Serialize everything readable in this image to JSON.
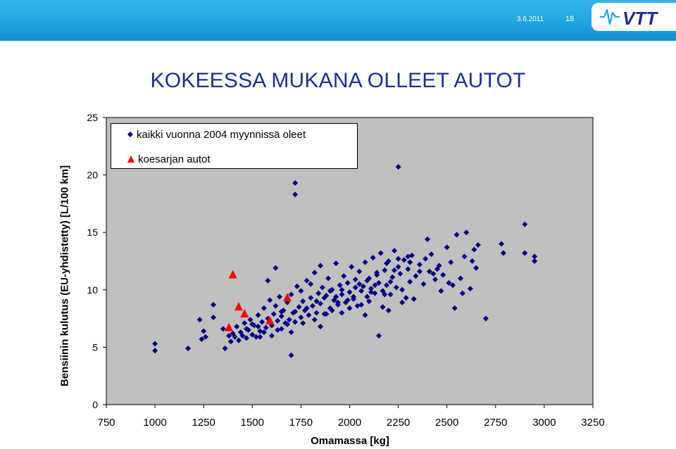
{
  "header": {
    "date": "3.6.2011",
    "page_number": "18",
    "logo_text": "VTT",
    "brand_color": "#1fa5e2"
  },
  "slide": {
    "title": "KOKEESSA MUKANA OLLEET AUTOT"
  },
  "chart_data": {
    "type": "scatter",
    "xlabel": "Omamassa [kg]",
    "ylabel": "Bensiinin kulutus (EU-yhdistetty) [L/100 km]",
    "xlim": [
      750,
      3250
    ],
    "ylim": [
      0,
      25
    ],
    "xticks": [
      750,
      1000,
      1250,
      1500,
      1750,
      2000,
      2250,
      2500,
      2750,
      3000,
      3250
    ],
    "yticks": [
      0,
      5,
      10,
      15,
      20,
      25
    ],
    "grid": false,
    "plot_background": "#c0c0c0",
    "legend_position": "top-left",
    "series": [
      {
        "name": "kaikki vuonna 2004 myynnissä oleet",
        "marker": "diamond",
        "color": "#000080",
        "points": [
          [
            1000,
            5.3
          ],
          [
            1000,
            4.7
          ],
          [
            1170,
            4.9
          ],
          [
            1230,
            7.4
          ],
          [
            1240,
            5.7
          ],
          [
            1250,
            6.4
          ],
          [
            1260,
            5.9
          ],
          [
            1300,
            8.7
          ],
          [
            1300,
            7.6
          ],
          [
            1350,
            6.6
          ],
          [
            1360,
            4.9
          ],
          [
            1380,
            6.0
          ],
          [
            1390,
            5.5
          ],
          [
            1400,
            6.2
          ],
          [
            1410,
            5.9
          ],
          [
            1420,
            6.8
          ],
          [
            1430,
            5.6
          ],
          [
            1440,
            6.3
          ],
          [
            1450,
            6.0
          ],
          [
            1460,
            7.1
          ],
          [
            1470,
            5.8
          ],
          [
            1480,
            6.5
          ],
          [
            1490,
            7.4
          ],
          [
            1500,
            6.1
          ],
          [
            1510,
            6.9
          ],
          [
            1520,
            5.9
          ],
          [
            1530,
            7.8
          ],
          [
            1540,
            6.4
          ],
          [
            1550,
            7.2
          ],
          [
            1560,
            8.4
          ],
          [
            1570,
            6.7
          ],
          [
            1580,
            7.5
          ],
          [
            1590,
            9.1
          ],
          [
            1600,
            6.9
          ],
          [
            1610,
            7.9
          ],
          [
            1620,
            8.6
          ],
          [
            1630,
            6.5
          ],
          [
            1640,
            9.4
          ],
          [
            1650,
            7.7
          ],
          [
            1660,
            8.2
          ],
          [
            1670,
            7.1
          ],
          [
            1680,
            8.9
          ],
          [
            1690,
            7.4
          ],
          [
            1700,
            9.6
          ],
          [
            1710,
            8.0
          ],
          [
            1720,
            7.2
          ],
          [
            1730,
            10.3
          ],
          [
            1740,
            8.5
          ],
          [
            1750,
            7.6
          ],
          [
            1760,
            9.0
          ],
          [
            1770,
            8.2
          ],
          [
            1780,
            10.8
          ],
          [
            1790,
            7.8
          ],
          [
            1800,
            9.3
          ],
          [
            1810,
            8.6
          ],
          [
            1820,
            11.5
          ],
          [
            1830,
            8.0
          ],
          [
            1840,
            9.7
          ],
          [
            1850,
            8.8
          ],
          [
            1860,
            10.2
          ],
          [
            1870,
            7.9
          ],
          [
            1880,
            9.5
          ],
          [
            1890,
            11.0
          ],
          [
            1900,
            8.4
          ],
          [
            1910,
            10.0
          ],
          [
            1920,
            9.1
          ],
          [
            1930,
            12.3
          ],
          [
            1940,
            8.7
          ],
          [
            1950,
            10.4
          ],
          [
            1960,
            9.6
          ],
          [
            1970,
            11.2
          ],
          [
            1980,
            8.9
          ],
          [
            1990,
            10.6
          ],
          [
            2000,
            9.8
          ],
          [
            2010,
            12.0
          ],
          [
            2020,
            9.2
          ],
          [
            2030,
            10.9
          ],
          [
            2040,
            8.6
          ],
          [
            2050,
            11.6
          ],
          [
            2060,
            9.9
          ],
          [
            2070,
            10.3
          ],
          [
            2080,
            12.4
          ],
          [
            2090,
            9.4
          ],
          [
            2100,
            11.0
          ],
          [
            2110,
            10.1
          ],
          [
            2120,
            12.8
          ],
          [
            2130,
            9.7
          ],
          [
            2140,
            11.3
          ],
          [
            2150,
            10.6
          ],
          [
            2160,
            13.2
          ],
          [
            2170,
            9.9
          ],
          [
            2180,
            11.7
          ],
          [
            2190,
            10.4
          ],
          [
            2200,
            12.5
          ],
          [
            2210,
            9.6
          ],
          [
            2220,
            11.1
          ],
          [
            2230,
            13.4
          ],
          [
            2240,
            10.2
          ],
          [
            2250,
            12.0
          ],
          [
            2260,
            11.4
          ],
          [
            2270,
            10.0
          ],
          [
            2280,
            12.6
          ],
          [
            2290,
            9.3
          ],
          [
            2300,
            11.8
          ],
          [
            2310,
            10.7
          ],
          [
            2320,
            13.0
          ],
          [
            2340,
            11.2
          ],
          [
            2360,
            12.2
          ],
          [
            2380,
            10.5
          ],
          [
            2400,
            14.4
          ],
          [
            2410,
            11.6
          ],
          [
            2420,
            13.1
          ],
          [
            2440,
            10.9
          ],
          [
            2460,
            12.1
          ],
          [
            2480,
            11.3
          ],
          [
            2500,
            13.7
          ],
          [
            2510,
            10.6
          ],
          [
            2520,
            12.4
          ],
          [
            2540,
            8.4
          ],
          [
            2550,
            14.8
          ],
          [
            2570,
            11.0
          ],
          [
            2590,
            12.9
          ],
          [
            2600,
            15.0
          ],
          [
            2620,
            10.1
          ],
          [
            2640,
            13.5
          ],
          [
            2650,
            11.9
          ],
          [
            2660,
            13.9
          ],
          [
            2700,
            7.5
          ],
          [
            2780,
            14.0
          ],
          [
            2790,
            13.2
          ],
          [
            2900,
            15.7
          ],
          [
            2900,
            13.2
          ],
          [
            2950,
            12.9
          ],
          [
            2950,
            12.5
          ],
          [
            2250,
            20.7
          ],
          [
            1720,
            19.3
          ],
          [
            1720,
            18.3
          ],
          [
            1700,
            4.3
          ],
          [
            1800,
            10.5
          ],
          [
            1850,
            12.1
          ],
          [
            1580,
            10.8
          ],
          [
            1620,
            11.9
          ],
          [
            1650,
            8.1
          ],
          [
            1750,
            9.9
          ],
          [
            1930,
            9.4
          ],
          [
            1960,
            8.0
          ],
          [
            2050,
            10.5
          ],
          [
            2100,
            9.0
          ],
          [
            2150,
            6.0
          ],
          [
            2200,
            8.2
          ],
          [
            1900,
            9.9
          ],
          [
            2000,
            8.4
          ],
          [
            2080,
            7.8
          ],
          [
            2130,
            10.4
          ],
          [
            2180,
            9.6
          ],
          [
            2230,
            11.7
          ],
          [
            2270,
            8.9
          ],
          [
            2330,
            9.2
          ],
          [
            2390,
            12.7
          ],
          [
            2450,
            11.8
          ],
          [
            1540,
            5.9
          ],
          [
            1560,
            6.3
          ],
          [
            1600,
            6.0
          ],
          [
            1650,
            6.6
          ],
          [
            1680,
            7.0
          ],
          [
            1700,
            6.3
          ],
          [
            1760,
            7.1
          ],
          [
            1820,
            7.4
          ],
          [
            1850,
            6.8
          ],
          [
            1880,
            7.9
          ],
          [
            1910,
            8.2
          ],
          [
            1940,
            8.9
          ],
          [
            1990,
            9.1
          ],
          [
            2020,
            9.4
          ],
          [
            2060,
            8.7
          ],
          [
            2110,
            9.8
          ],
          [
            2170,
            8.5
          ],
          [
            2210,
            10.7
          ],
          [
            2300,
            12.9
          ],
          [
            2360,
            11.6
          ],
          [
            1470,
            6.6
          ],
          [
            1500,
            7.0
          ],
          [
            1530,
            6.8
          ],
          [
            1630,
            7.3
          ],
          [
            1720,
            8.1
          ],
          [
            1780,
            8.4
          ],
          [
            1830,
            9.0
          ],
          [
            1870,
            9.3
          ],
          [
            1960,
            10.0
          ],
          [
            2030,
            10.2
          ],
          [
            2090,
            10.8
          ],
          [
            2140,
            11.5
          ],
          [
            2190,
            12.3
          ],
          [
            2250,
            12.7
          ],
          [
            2310,
            12.4
          ],
          [
            2430,
            11.4
          ],
          [
            2470,
            9.9
          ],
          [
            2530,
            10.4
          ],
          [
            2580,
            9.7
          ],
          [
            2630,
            12.5
          ]
        ]
      },
      {
        "name": "koesarjan autot",
        "marker": "triangle",
        "color": "#ff0000",
        "points": [
          [
            1380,
            6.7
          ],
          [
            1400,
            11.3
          ],
          [
            1430,
            8.5
          ],
          [
            1460,
            7.9
          ],
          [
            1590,
            7.3
          ],
          [
            1680,
            9.3
          ]
        ]
      }
    ]
  }
}
